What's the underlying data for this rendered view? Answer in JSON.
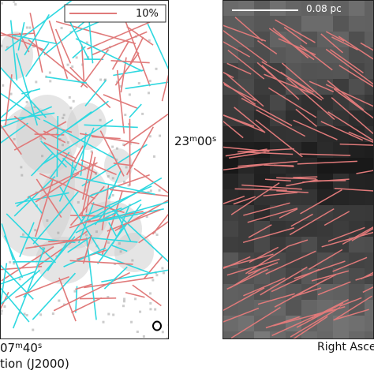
{
  "colors": {
    "vector_red": "#e07a7a",
    "vector_cyan": "#2fd8e0",
    "right_background": "#1f1f1f",
    "left_background": "#ffffff"
  },
  "left_panel": {
    "legend": {
      "label": "10%"
    },
    "ra_tick": {
      "major": "07",
      "major_unit": "m",
      "minor": "40",
      "minor_unit": "s"
    },
    "ra_axis_label": "tion (J2000)",
    "beam_icon": "beam-ellipse-icon"
  },
  "right_panel": {
    "scale_bar": {
      "label": "0.08 pc"
    },
    "ra_axis_label": "Right Asce"
  },
  "dec_tick": {
    "major": "23",
    "major_unit": "m",
    "minor": "00",
    "minor_unit": "s"
  }
}
